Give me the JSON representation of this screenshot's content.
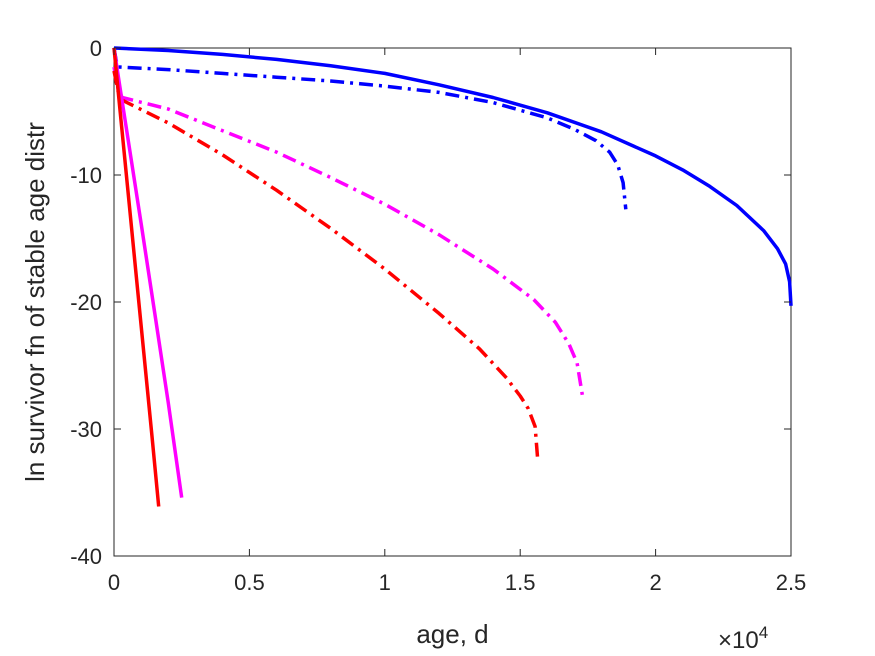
{
  "chart_data": {
    "type": "line",
    "title": "",
    "xlabel": "age, d",
    "ylabel": "ln survivor fn of stable age distr",
    "xlim": [
      0,
      25000
    ],
    "ylim": [
      -40,
      0
    ],
    "x_ticks": [
      0,
      5000,
      10000,
      15000,
      20000,
      25000
    ],
    "x_tick_labels": [
      "0",
      "0.5",
      "1",
      "1.5",
      "2",
      "2.5"
    ],
    "x_multiplier_base": "×10",
    "x_multiplier_exp": "4",
    "y_ticks": [
      0,
      -10,
      -20,
      -30,
      -40
    ],
    "y_tick_labels": [
      "0",
      "-10",
      "-20",
      "-30",
      "-40"
    ],
    "grid": false,
    "box": true,
    "series": [
      {
        "color": "#0000ff",
        "style": "solid",
        "x": [
          0,
          2000,
          4000,
          6000,
          8000,
          10000,
          12000,
          14000,
          16000,
          18000,
          20000,
          21000,
          22000,
          23000,
          24000,
          24500,
          24800,
          24950,
          25000
        ],
        "y": [
          0,
          -0.2,
          -0.5,
          -0.9,
          -1.4,
          -2.0,
          -2.9,
          -3.9,
          -5.1,
          -6.6,
          -8.5,
          -9.6,
          -10.9,
          -12.4,
          -14.4,
          -15.8,
          -17.0,
          -18.4,
          -20.3
        ]
      },
      {
        "color": "#0000ff",
        "style": "dashdot",
        "x": [
          0,
          80,
          150,
          2000,
          4000,
          6000,
          8000,
          10000,
          12000,
          14000,
          16000,
          17000,
          17800,
          18300,
          18600,
          18800,
          18900
        ],
        "y": [
          0,
          -1.0,
          -1.5,
          -1.7,
          -2.0,
          -2.3,
          -2.6,
          -3.0,
          -3.5,
          -4.3,
          -5.5,
          -6.4,
          -7.3,
          -8.2,
          -9.2,
          -10.6,
          -12.7
        ]
      },
      {
        "color": "#ff00ff",
        "style": "dashdot",
        "x": [
          0,
          150,
          300,
          2000,
          4000,
          6000,
          8000,
          10000,
          12000,
          14000,
          15500,
          16300,
          16800,
          17100,
          17300
        ],
        "y": [
          -1.5,
          -3.2,
          -3.9,
          -4.8,
          -6.5,
          -8.2,
          -10.2,
          -12.3,
          -14.7,
          -17.4,
          -19.8,
          -21.6,
          -23.3,
          -24.8,
          -27.4
        ]
      },
      {
        "color": "#ff0000",
        "style": "dashdot",
        "x": [
          0,
          150,
          300,
          2000,
          4000,
          6000,
          8000,
          10000,
          12000,
          13500,
          14500,
          15000,
          15300,
          15550,
          15650
        ],
        "y": [
          -1.8,
          -3.4,
          -4.1,
          -5.9,
          -8.4,
          -11.2,
          -14.2,
          -17.4,
          -20.9,
          -23.7,
          -26.0,
          -27.4,
          -28.4,
          -29.8,
          -32.5
        ]
      },
      {
        "color": "#ff00ff",
        "style": "solid",
        "x": [
          0,
          200,
          500,
          1000,
          1500,
          2000,
          2500
        ],
        "y": [
          0,
          -2.8,
          -6.9,
          -13.8,
          -20.8,
          -27.9,
          -35.4
        ]
      },
      {
        "color": "#ff0000",
        "style": "solid",
        "x": [
          0,
          200,
          500,
          800,
          1100,
          1400,
          1650
        ],
        "y": [
          0,
          -4.4,
          -10.9,
          -17.5,
          -24.0,
          -30.5,
          -36.1
        ]
      }
    ]
  }
}
